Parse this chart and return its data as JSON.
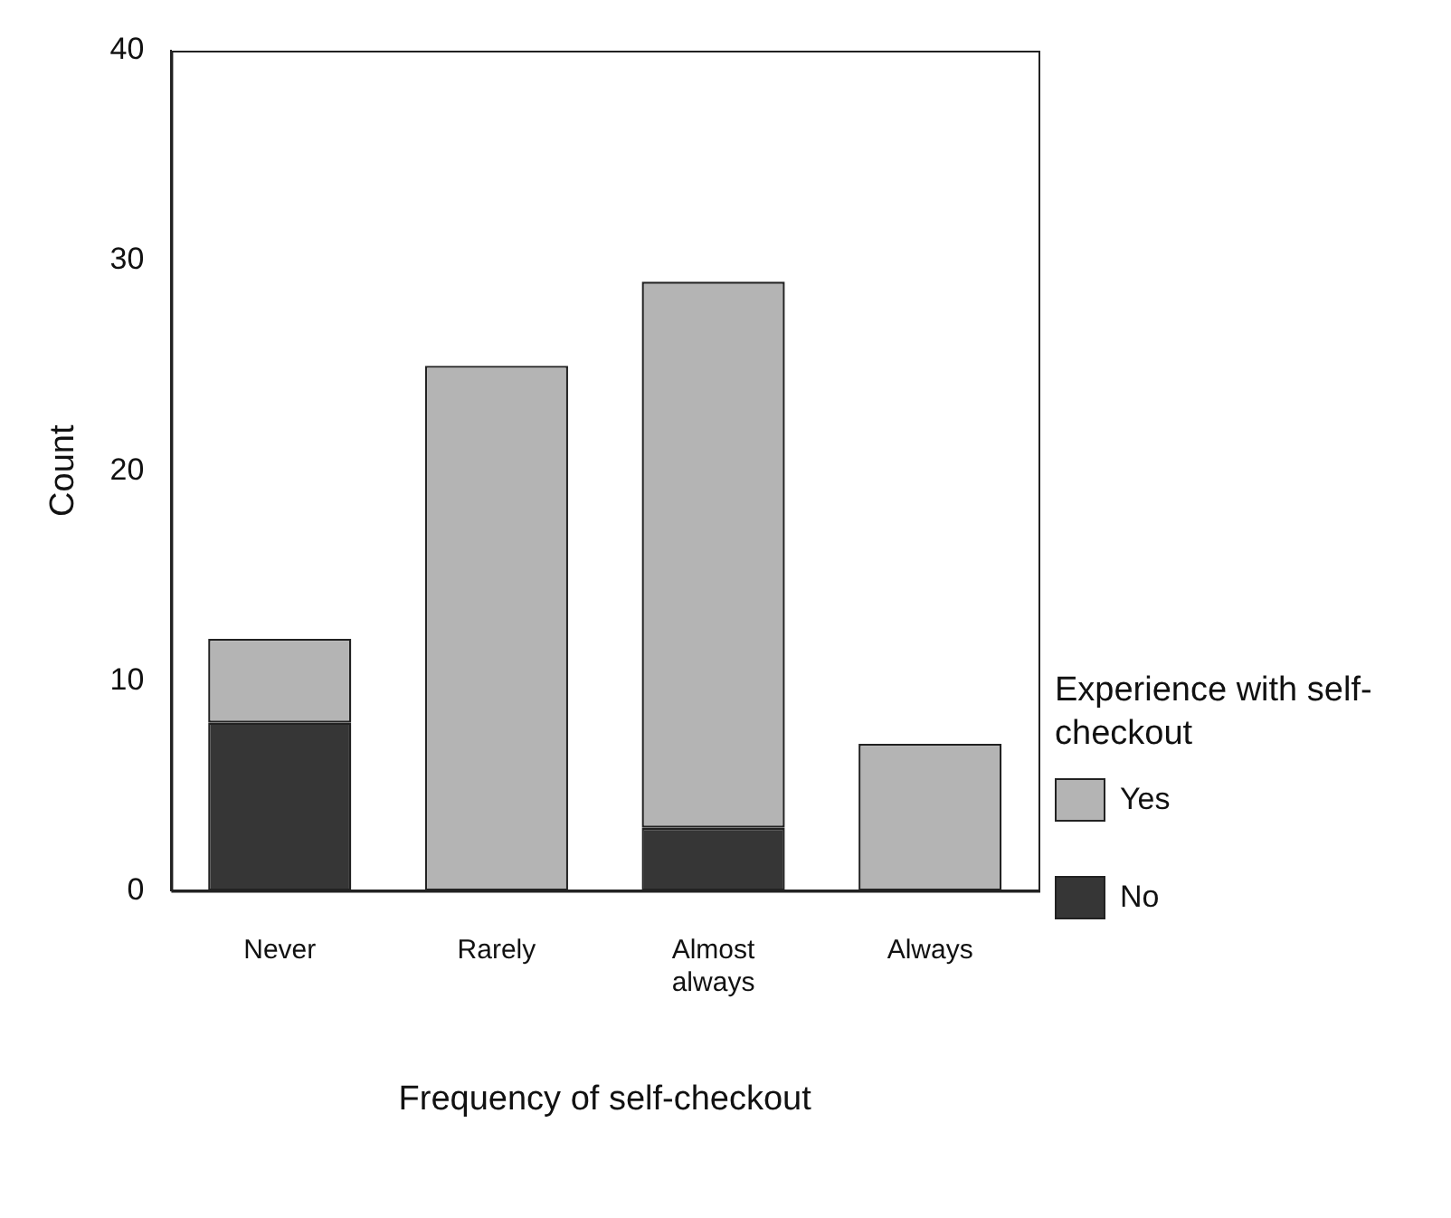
{
  "chart_data": {
    "type": "bar",
    "xlabel": "Frequency of self-checkout",
    "ylabel": "Count",
    "legend_title": "Experience with self-checkout",
    "categories": [
      "Never",
      "Rarely",
      "Almost always",
      "Always"
    ],
    "series": [
      {
        "name": "No",
        "color": "#363636",
        "values": [
          8,
          0,
          3,
          0
        ]
      },
      {
        "name": "Yes",
        "color": "#b4b4b4",
        "values": [
          4,
          25,
          26,
          7
        ]
      }
    ],
    "stacked": true,
    "ylim": [
      0,
      40
    ],
    "yticks": [
      0,
      10,
      20,
      30,
      40
    ],
    "grid": false,
    "legend": "right"
  }
}
